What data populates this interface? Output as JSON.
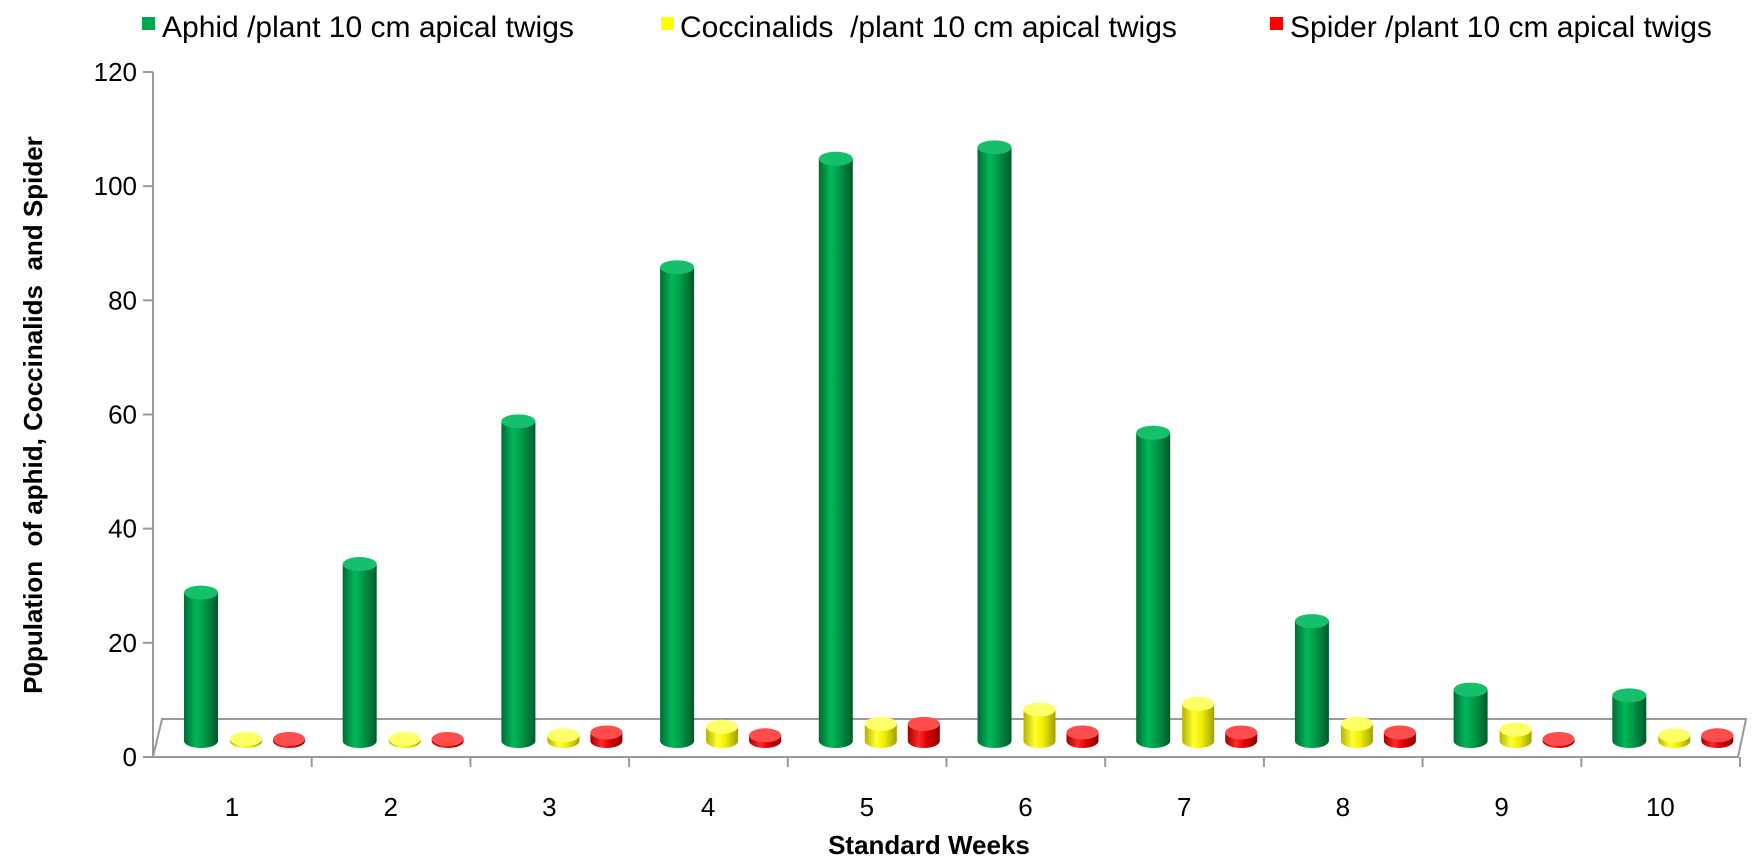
{
  "chart_data": {
    "type": "bar",
    "style": "3d-cylinder",
    "title": "",
    "xlabel": "Standard Weeks",
    "ylabel": "P0pulation  of aphid, Coccinalids  and Spider",
    "categories": [
      "1",
      "2",
      "3",
      "4",
      "5",
      "6",
      "7",
      "8",
      "9",
      "10"
    ],
    "ylim": [
      0,
      120
    ],
    "yticks": [
      "0",
      "20",
      "40",
      "60",
      "80",
      "100",
      "120"
    ],
    "grid": false,
    "legend_position": "top",
    "series": [
      {
        "name": "Aphid /plant 10 cm apical twigs",
        "color": "#00a650",
        "values": [
          26,
          31,
          56,
          83,
          102,
          104,
          54,
          21,
          9,
          8
        ]
      },
      {
        "name": "Coccinalids  /plant 10 cm apical twigs",
        "color": "#ffff00",
        "values": [
          0.2,
          0.2,
          1.0,
          2.5,
          3.0,
          5.5,
          6.5,
          3.0,
          2.0,
          1.0
        ]
      },
      {
        "name": "Spider /plant 10 cm apical twigs",
        "color": "#ff0000",
        "values": [
          0.3,
          0.3,
          1.5,
          1.0,
          3.0,
          1.5,
          1.5,
          1.5,
          0.3,
          1.0
        ]
      }
    ]
  }
}
